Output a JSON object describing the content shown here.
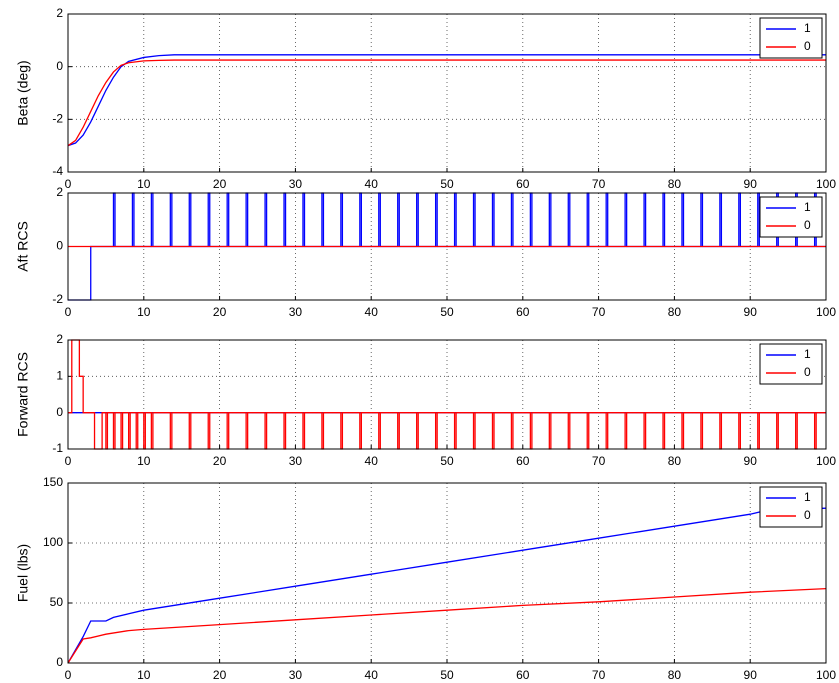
{
  "chart_data": [
    {
      "type": "line",
      "ylabel": "Beta (deg)",
      "xlim": [
        0,
        100
      ],
      "ylim": [
        -4,
        2
      ],
      "xticks": [
        0,
        10,
        20,
        30,
        40,
        50,
        60,
        70,
        80,
        90,
        100
      ],
      "yticks": [
        -4,
        -2,
        0,
        2
      ],
      "grid": true,
      "legend": "upper right",
      "series": [
        {
          "name": "1",
          "color": "#0000ff",
          "x": [
            0,
            1,
            2,
            3,
            4,
            5,
            6,
            7,
            8,
            10,
            12,
            14,
            20,
            30,
            40,
            50,
            60,
            70,
            80,
            90,
            100
          ],
          "values": [
            -3,
            -2.9,
            -2.6,
            -2.1,
            -1.5,
            -0.9,
            -0.4,
            0,
            0.2,
            0.35,
            0.42,
            0.45,
            0.45,
            0.45,
            0.45,
            0.45,
            0.45,
            0.45,
            0.45,
            0.45,
            0.45
          ]
        },
        {
          "name": "0",
          "color": "#ff0000",
          "x": [
            0,
            1,
            2,
            3,
            4,
            5,
            6,
            7,
            8,
            10,
            12,
            14,
            20,
            30,
            40,
            50,
            60,
            70,
            80,
            90,
            100
          ],
          "values": [
            -3,
            -2.8,
            -2.3,
            -1.7,
            -1.1,
            -0.6,
            -0.2,
            0.05,
            0.15,
            0.22,
            0.24,
            0.25,
            0.25,
            0.25,
            0.25,
            0.25,
            0.25,
            0.25,
            0.25,
            0.25,
            0.25
          ]
        }
      ]
    },
    {
      "type": "step",
      "ylabel": "Aft RCS",
      "xlim": [
        0,
        100
      ],
      "ylim": [
        -2,
        2
      ],
      "xticks": [
        0,
        10,
        20,
        30,
        40,
        50,
        60,
        70,
        80,
        90,
        100
      ],
      "yticks": [
        -2,
        0,
        2
      ],
      "grid": true,
      "legend": "upper right",
      "series": [
        {
          "name": "1",
          "color": "#0000ff",
          "x": [
            0,
            3,
            6,
            6.2,
            8.5,
            8.7,
            11,
            11.2,
            13.5,
            13.7,
            16,
            16.2,
            18.5,
            18.7,
            21,
            21.2,
            23.5,
            23.7,
            26,
            26.2,
            28.5,
            28.7,
            31,
            31.2,
            33.5,
            33.7,
            36,
            36.2,
            38.5,
            38.7,
            41,
            41.2,
            43.5,
            43.7,
            46,
            46.2,
            48.5,
            48.7,
            51,
            51.2,
            53.5,
            53.7,
            56,
            56.2,
            58.5,
            58.7,
            61,
            61.2,
            63.5,
            63.7,
            66,
            66.2,
            68.5,
            68.7,
            71,
            71.2,
            73.5,
            73.7,
            76,
            76.2,
            78.5,
            78.7,
            81,
            81.2,
            83.5,
            83.7,
            86,
            86.2,
            88.5,
            88.7,
            91,
            91.2,
            93.5,
            93.7,
            96,
            96.2,
            98.5,
            98.7,
            100
          ],
          "values": [
            -2,
            0,
            2,
            0,
            2,
            0,
            2,
            0,
            2,
            0,
            2,
            0,
            2,
            0,
            2,
            0,
            2,
            0,
            2,
            0,
            2,
            0,
            2,
            0,
            2,
            0,
            2,
            0,
            2,
            0,
            2,
            0,
            2,
            0,
            2,
            0,
            2,
            0,
            2,
            0,
            2,
            0,
            2,
            0,
            2,
            0,
            2,
            0,
            2,
            0,
            2,
            0,
            2,
            0,
            2,
            0,
            2,
            0,
            2,
            0,
            2,
            0,
            2,
            0,
            2,
            0,
            2,
            0,
            2,
            0,
            2,
            0,
            2,
            0,
            2,
            0,
            2,
            0,
            0
          ]
        },
        {
          "name": "0",
          "color": "#ff0000",
          "x": [
            0,
            100
          ],
          "values": [
            0,
            0
          ]
        }
      ]
    },
    {
      "type": "step",
      "ylabel": "Forward RCS",
      "xlim": [
        0,
        100
      ],
      "ylim": [
        -1,
        2
      ],
      "xticks": [
        0,
        10,
        20,
        30,
        40,
        50,
        60,
        70,
        80,
        90,
        100
      ],
      "yticks": [
        -1,
        0,
        1,
        2
      ],
      "grid": true,
      "legend": "upper right",
      "series": [
        {
          "name": "1",
          "color": "#0000ff",
          "x": [
            0,
            100
          ],
          "values": [
            0,
            0
          ]
        },
        {
          "name": "0",
          "color": "#ff0000",
          "x": [
            0,
            0.5,
            1.5,
            2,
            3.5,
            4.5,
            5,
            5.2,
            6,
            6.2,
            7,
            7.2,
            8,
            8.2,
            9,
            9.2,
            10,
            10.2,
            11,
            11.2,
            13.5,
            13.7,
            16,
            16.2,
            18.5,
            18.7,
            21,
            21.2,
            23.5,
            23.7,
            26,
            26.2,
            28.5,
            28.7,
            31,
            31.2,
            33.5,
            33.7,
            36,
            36.2,
            38.5,
            38.7,
            41,
            41.2,
            43.5,
            43.7,
            46,
            46.2,
            48.5,
            48.7,
            51,
            51.2,
            53.5,
            53.7,
            56,
            56.2,
            58.5,
            58.7,
            61,
            61.2,
            63.5,
            63.7,
            66,
            66.2,
            68.5,
            68.7,
            71,
            71.2,
            73.5,
            73.7,
            76,
            76.2,
            78.5,
            78.7,
            81,
            81.2,
            83.5,
            83.7,
            86,
            86.2,
            88.5,
            88.7,
            91,
            91.2,
            93.5,
            93.7,
            96,
            96.2,
            98.5,
            98.7,
            100
          ],
          "values": [
            0,
            2,
            1,
            0,
            -1,
            0,
            -1,
            0,
            -1,
            0,
            -1,
            0,
            -1,
            0,
            -1,
            0,
            -1,
            0,
            -1,
            0,
            -1,
            0,
            -1,
            0,
            -1,
            0,
            -1,
            0,
            -1,
            0,
            -1,
            0,
            -1,
            0,
            -1,
            0,
            -1,
            0,
            -1,
            0,
            -1,
            0,
            -1,
            0,
            -1,
            0,
            -1,
            0,
            -1,
            0,
            -1,
            0,
            -1,
            0,
            -1,
            0,
            -1,
            0,
            -1,
            0,
            -1,
            0,
            -1,
            0,
            -1,
            0,
            -1,
            0,
            -1,
            0,
            -1,
            0,
            -1,
            0,
            -1,
            0,
            -1,
            0,
            -1,
            0,
            -1,
            0,
            -1,
            0,
            -1,
            0,
            -1,
            0,
            -1,
            0,
            0
          ]
        }
      ]
    },
    {
      "type": "line",
      "ylabel": "Fuel (lbs)",
      "xlim": [
        0,
        100
      ],
      "ylim": [
        0,
        150
      ],
      "xticks": [
        0,
        10,
        20,
        30,
        40,
        50,
        60,
        70,
        80,
        90,
        100
      ],
      "yticks": [
        0,
        50,
        100,
        150
      ],
      "grid": true,
      "legend": "upper right",
      "series": [
        {
          "name": "1",
          "color": "#0000ff",
          "x": [
            0,
            2,
            3,
            5,
            6,
            8,
            10,
            20,
            30,
            40,
            50,
            60,
            70,
            80,
            90,
            92,
            100
          ],
          "values": [
            0,
            22,
            35,
            35,
            38,
            41,
            44,
            54,
            64,
            74,
            84,
            94,
            104,
            114,
            124,
            127,
            129
          ]
        },
        {
          "name": "0",
          "color": "#ff0000",
          "x": [
            0,
            2,
            3,
            5,
            8,
            10,
            20,
            30,
            40,
            50,
            60,
            70,
            80,
            90,
            100
          ],
          "values": [
            0,
            20,
            21,
            24,
            27,
            28,
            32,
            36,
            40,
            44,
            48,
            51,
            55,
            59,
            62
          ]
        }
      ]
    }
  ]
}
